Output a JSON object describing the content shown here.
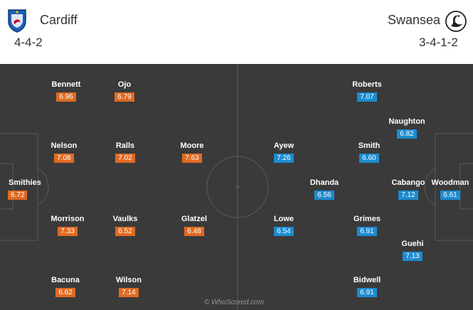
{
  "home": {
    "name": "Cardiff",
    "formation": "4-4-2",
    "crest_icon": "cardiff-crest-icon",
    "color": "#e06a22",
    "players": [
      {
        "name": "Bennett",
        "rating": "6.96"
      },
      {
        "name": "Ojo",
        "rating": "6.79"
      },
      {
        "name": "Nelson",
        "rating": "7.08"
      },
      {
        "name": "Ralls",
        "rating": "7.02"
      },
      {
        "name": "Moore",
        "rating": "7.63"
      },
      {
        "name": "Smithies",
        "rating": "6.72"
      },
      {
        "name": "Morrison",
        "rating": "7.33"
      },
      {
        "name": "Vaulks",
        "rating": "6.52"
      },
      {
        "name": "Glatzel",
        "rating": "6.48"
      },
      {
        "name": "Bacuna",
        "rating": "6.62"
      },
      {
        "name": "Wilson",
        "rating": "7.14"
      }
    ]
  },
  "away": {
    "name": "Swansea",
    "formation": "3-4-1-2",
    "crest_icon": "swansea-swan-crest-icon",
    "color": "#1d8bd1",
    "players": [
      {
        "name": "Roberts",
        "rating": "7.07"
      },
      {
        "name": "Naughton",
        "rating": "6.82"
      },
      {
        "name": "Ayew",
        "rating": "7.26"
      },
      {
        "name": "Smith",
        "rating": "6.60"
      },
      {
        "name": "Dhanda",
        "rating": "6.56"
      },
      {
        "name": "Cabango",
        "rating": "7.12"
      },
      {
        "name": "Woodman",
        "rating": "6.61"
      },
      {
        "name": "Lowe",
        "rating": "6.54"
      },
      {
        "name": "Grimes",
        "rating": "6.91"
      },
      {
        "name": "Guehi",
        "rating": "7.13"
      },
      {
        "name": "Bidwell",
        "rating": "6.91"
      }
    ]
  },
  "pitch_color": "#3a3a3a",
  "watermark": "© WhoScored.com"
}
